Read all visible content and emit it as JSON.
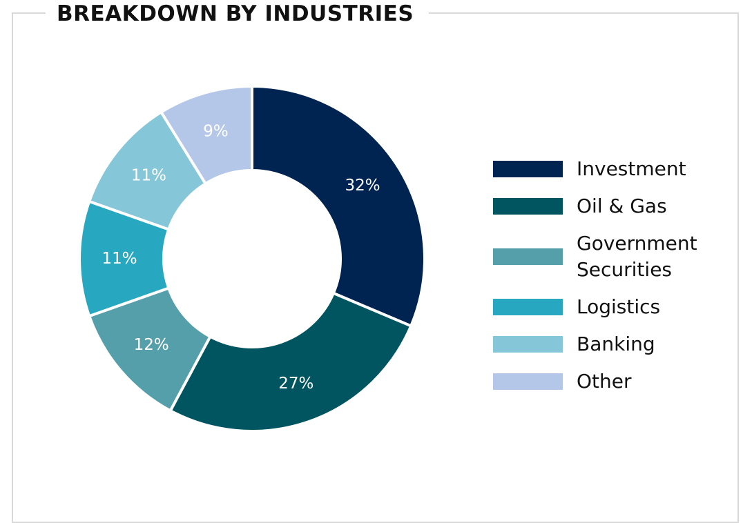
{
  "chart_data": {
    "type": "pie",
    "title": "BREAKDOWN BY INDUSTRIES",
    "categories": [
      "Investment",
      "Oil & Gas",
      "Government Securities",
      "Logistics",
      "Banking",
      "Other"
    ],
    "values": [
      32,
      27,
      12,
      11,
      11,
      9
    ],
    "value_labels": [
      "32%",
      "27%",
      "12%",
      "11%",
      "11%",
      "9%"
    ],
    "colors": [
      "#002451",
      "#015560",
      "#559fab",
      "#27a8c0",
      "#85c6d9",
      "#b5c7e8"
    ],
    "label_colors": [
      "#ffffff",
      "#ffffff",
      "#ffffff",
      "#ffffff",
      "#ffffff",
      "#ffffff"
    ],
    "donut": true,
    "legend_position": "right"
  },
  "legend": {
    "items": [
      {
        "label": "Investment",
        "color": "#002451"
      },
      {
        "label": "Oil & Gas",
        "color": "#015560"
      },
      {
        "label": "Government\nSecurities",
        "color": "#559fab"
      },
      {
        "label": "Logistics",
        "color": "#27a8c0"
      },
      {
        "label": "Banking",
        "color": "#85c6d9"
      },
      {
        "label": "Other",
        "color": "#b5c7e8"
      }
    ]
  }
}
